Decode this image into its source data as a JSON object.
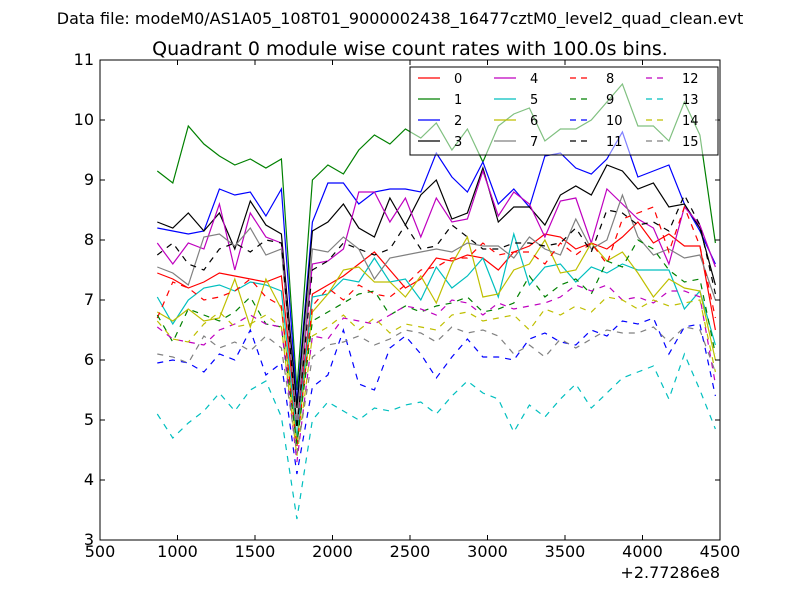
{
  "chart_data": {
    "type": "line",
    "suptitle": "Data file: modeM0/AS1A05_108T01_9000002438_16477cztM0_level2_quad_clean.evt",
    "title": "Quadrant 0 module wise count rates with 100.0s bins.",
    "xlabel": "",
    "ylabel": "",
    "x_offset_label": "+2.77286e8",
    "xlim": [
      500,
      4500
    ],
    "ylim": [
      3,
      11
    ],
    "x_ticks": [
      "500",
      "1000",
      "1500",
      "2000",
      "2500",
      "3000",
      "3500",
      "4000",
      "4500"
    ],
    "y_ticks": [
      "3",
      "4",
      "5",
      "6",
      "7",
      "8",
      "9",
      "10",
      "11"
    ],
    "legend_position": "top-right",
    "x": [
      870,
      970,
      1070,
      1170,
      1270,
      1370,
      1470,
      1570,
      1670,
      1770,
      1870,
      1970,
      2070,
      2170,
      2270,
      2370,
      2470,
      2570,
      2670,
      2770,
      2870,
      2970,
      3070,
      3170,
      3270,
      3370,
      3470,
      3570,
      3670,
      3770,
      3870,
      3970,
      4070,
      4170,
      4270,
      4370,
      4470
    ],
    "series": [
      {
        "name": "0",
        "color": "#ff0000",
        "dash": "solid",
        "values": [
          7.45,
          7.35,
          7.2,
          7.3,
          7.45,
          7.4,
          7.35,
          7.3,
          7.4,
          4.9,
          7.1,
          7.25,
          7.4,
          7.6,
          7.8,
          7.5,
          7.2,
          7.35,
          7.7,
          7.65,
          7.75,
          7.7,
          7.5,
          7.8,
          7.9,
          8.1,
          8.05,
          7.85,
          7.95,
          7.85,
          8.05,
          8.3,
          7.95,
          8.1,
          7.9,
          7.9,
          6.5
        ]
      },
      {
        "name": "1",
        "color": "#008000",
        "dash": "solid",
        "values": [
          9.15,
          8.95,
          9.9,
          9.6,
          9.4,
          9.25,
          9.35,
          9.2,
          9.35,
          5.5,
          9.0,
          9.25,
          9.1,
          9.5,
          9.75,
          9.6,
          9.85,
          9.7,
          9.95,
          9.5,
          9.85,
          9.3,
          9.9,
          10.1,
          10.2,
          9.65,
          9.85,
          9.85,
          10.0,
          10.3,
          10.6,
          9.9,
          9.9,
          9.65,
          10.3,
          9.75,
          7.95
        ]
      },
      {
        "name": "2",
        "color": "#0000ff",
        "dash": "solid",
        "values": [
          8.2,
          8.15,
          8.1,
          8.15,
          8.85,
          8.75,
          8.8,
          8.4,
          8.85,
          5.3,
          8.3,
          8.95,
          8.95,
          8.6,
          8.8,
          8.85,
          8.85,
          8.8,
          9.45,
          9.05,
          8.8,
          9.3,
          8.6,
          8.85,
          8.55,
          9.4,
          9.45,
          9.2,
          9.1,
          9.35,
          9.8,
          9.05,
          9.15,
          9.25,
          8.6,
          8.15,
          7.6
        ]
      },
      {
        "name": "3",
        "color": "#000000",
        "dash": "solid",
        "values": [
          8.3,
          8.2,
          8.45,
          8.15,
          8.45,
          7.85,
          8.65,
          8.25,
          8.1,
          5.2,
          8.15,
          8.3,
          8.6,
          8.2,
          8.05,
          8.7,
          8.25,
          8.75,
          9.0,
          8.35,
          8.45,
          9.2,
          8.3,
          8.55,
          8.55,
          8.25,
          8.75,
          8.9,
          8.75,
          9.25,
          9.15,
          8.85,
          8.95,
          8.55,
          8.6,
          8.2,
          7.25
        ]
      },
      {
        "name": "4",
        "color": "#bf00bf",
        "dash": "solid",
        "values": [
          7.95,
          7.6,
          7.95,
          7.85,
          8.6,
          7.5,
          8.45,
          8.05,
          7.95,
          4.9,
          7.6,
          7.65,
          7.85,
          8.8,
          8.8,
          8.3,
          8.7,
          8.05,
          8.7,
          8.3,
          8.35,
          9.15,
          8.4,
          8.8,
          8.6,
          8.05,
          8.65,
          8.7,
          7.95,
          8.85,
          8.6,
          8.35,
          8.2,
          7.6,
          8.55,
          8.25,
          7.55
        ]
      },
      {
        "name": "5",
        "color": "#00bfbf",
        "dash": "solid",
        "values": [
          7.05,
          6.6,
          7.0,
          7.2,
          7.25,
          7.15,
          7.3,
          7.25,
          7.15,
          4.7,
          7.05,
          7.1,
          7.35,
          7.3,
          7.7,
          7.3,
          7.35,
          7.0,
          7.55,
          7.2,
          7.4,
          7.7,
          7.05,
          8.1,
          7.25,
          7.55,
          7.6,
          7.3,
          7.55,
          7.45,
          7.6,
          7.5,
          7.5,
          7.5,
          6.85,
          7.15,
          6.25
        ]
      },
      {
        "name": "6",
        "color": "#bfbf00",
        "dash": "solid",
        "values": [
          6.8,
          6.65,
          6.85,
          6.65,
          6.7,
          7.35,
          6.55,
          7.35,
          6.85,
          4.6,
          6.8,
          7.1,
          7.5,
          7.55,
          7.3,
          7.3,
          7.05,
          7.4,
          6.95,
          7.6,
          8.05,
          7.05,
          7.1,
          7.5,
          7.6,
          8.0,
          7.45,
          7.5,
          7.95,
          7.65,
          7.8,
          7.45,
          7.05,
          7.35,
          7.2,
          7.15,
          6.0
        ]
      },
      {
        "name": "7",
        "color": "#808080",
        "dash": "solid",
        "values": [
          7.55,
          7.45,
          7.25,
          8.05,
          8.1,
          7.9,
          8.2,
          7.75,
          7.85,
          4.95,
          7.85,
          7.8,
          8.05,
          7.85,
          7.35,
          7.7,
          7.75,
          7.8,
          7.85,
          7.8,
          7.95,
          7.9,
          7.9,
          7.7,
          8.05,
          7.85,
          7.75,
          8.35,
          7.85,
          8.0,
          8.75,
          8.05,
          7.75,
          7.85,
          7.7,
          7.75,
          7.0
        ]
      },
      {
        "name": "8",
        "color": "#ff0000",
        "dash": "dashed",
        "values": [
          6.7,
          7.3,
          7.2,
          7.0,
          7.05,
          7.15,
          7.35,
          7.05,
          6.9,
          4.55,
          6.9,
          7.2,
          7.0,
          7.25,
          7.1,
          7.05,
          7.25,
          7.5,
          7.55,
          7.7,
          7.7,
          7.95,
          7.75,
          7.8,
          7.8,
          7.6,
          7.95,
          7.75,
          7.95,
          7.6,
          8.35,
          8.45,
          8.55,
          7.8,
          8.55,
          7.9,
          6.7
        ]
      },
      {
        "name": "9",
        "color": "#008000",
        "dash": "dashed",
        "values": [
          6.75,
          6.3,
          6.85,
          6.75,
          6.65,
          6.8,
          7.05,
          6.6,
          6.55,
          4.6,
          6.65,
          6.8,
          6.95,
          7.1,
          7.15,
          6.75,
          6.9,
          6.8,
          6.9,
          6.95,
          7.05,
          6.8,
          6.85,
          6.95,
          7.4,
          7.05,
          7.25,
          7.35,
          7.1,
          7.65,
          7.55,
          8.0,
          7.85,
          7.5,
          7.3,
          7.35,
          6.1
        ]
      },
      {
        "name": "10",
        "color": "#0000ff",
        "dash": "dashed",
        "values": [
          5.95,
          6.0,
          5.95,
          5.8,
          6.1,
          6.0,
          6.5,
          5.75,
          5.95,
          4.1,
          5.55,
          5.75,
          6.5,
          5.6,
          5.5,
          6.2,
          6.4,
          6.1,
          5.7,
          6.05,
          6.35,
          6.05,
          6.05,
          6.0,
          6.35,
          6.45,
          6.3,
          6.25,
          6.5,
          6.4,
          6.65,
          6.6,
          6.7,
          6.1,
          6.55,
          6.6,
          5.4
        ]
      },
      {
        "name": "11",
        "color": "#000000",
        "dash": "dashed",
        "values": [
          7.75,
          7.95,
          7.6,
          7.5,
          7.85,
          7.95,
          7.8,
          8.0,
          7.95,
          4.85,
          7.5,
          7.65,
          7.95,
          7.85,
          7.75,
          7.85,
          8.25,
          7.85,
          7.9,
          8.25,
          8.05,
          7.85,
          7.85,
          7.95,
          7.95,
          7.9,
          7.95,
          8.2,
          7.8,
          8.5,
          8.45,
          8.25,
          8.3,
          8.15,
          8.75,
          8.25,
          7.1
        ]
      },
      {
        "name": "12",
        "color": "#bf00bf",
        "dash": "dashed",
        "values": [
          6.55,
          6.35,
          6.3,
          6.25,
          6.5,
          6.6,
          6.75,
          6.6,
          6.55,
          4.3,
          6.4,
          6.35,
          6.7,
          6.65,
          6.6,
          6.75,
          6.9,
          6.85,
          6.75,
          7.0,
          6.95,
          6.75,
          6.95,
          6.85,
          6.9,
          6.95,
          7.05,
          7.25,
          7.15,
          7.25,
          7.0,
          7.05,
          6.95,
          7.15,
          7.15,
          7.05,
          5.6
        ]
      },
      {
        "name": "13",
        "color": "#00bfbf",
        "dash": "dashed",
        "values": [
          5.1,
          4.7,
          4.95,
          5.15,
          5.45,
          5.15,
          5.5,
          5.65,
          5.05,
          3.35,
          5.0,
          5.3,
          5.15,
          5.0,
          5.2,
          5.15,
          5.25,
          5.3,
          5.1,
          5.4,
          5.65,
          5.45,
          5.35,
          4.8,
          5.25,
          5.05,
          5.35,
          5.6,
          5.2,
          5.45,
          5.7,
          5.8,
          5.9,
          5.35,
          6.1,
          5.5,
          4.85
        ]
      },
      {
        "name": "14",
        "color": "#bfbf00",
        "dash": "dashed",
        "values": [
          6.65,
          6.35,
          6.3,
          6.6,
          6.8,
          6.55,
          6.6,
          6.75,
          6.55,
          4.4,
          6.4,
          6.55,
          6.75,
          6.5,
          6.7,
          6.45,
          6.6,
          6.55,
          6.5,
          6.75,
          6.8,
          6.65,
          6.7,
          6.75,
          6.5,
          6.85,
          6.75,
          6.9,
          6.8,
          7.05,
          7.0,
          6.85,
          7.0,
          6.9,
          6.95,
          7.0,
          5.8
        ]
      },
      {
        "name": "15",
        "color": "#808080",
        "dash": "dashed",
        "values": [
          6.1,
          6.05,
          5.95,
          6.4,
          6.2,
          6.3,
          6.15,
          6.4,
          6.2,
          4.45,
          6.05,
          6.25,
          6.3,
          6.4,
          6.25,
          6.35,
          6.5,
          6.45,
          6.3,
          6.55,
          6.45,
          6.5,
          6.4,
          6.1,
          6.25,
          6.05,
          6.35,
          6.2,
          6.35,
          6.5,
          6.45,
          6.45,
          6.55,
          6.3,
          6.55,
          6.5,
          5.8
        ]
      }
    ]
  }
}
